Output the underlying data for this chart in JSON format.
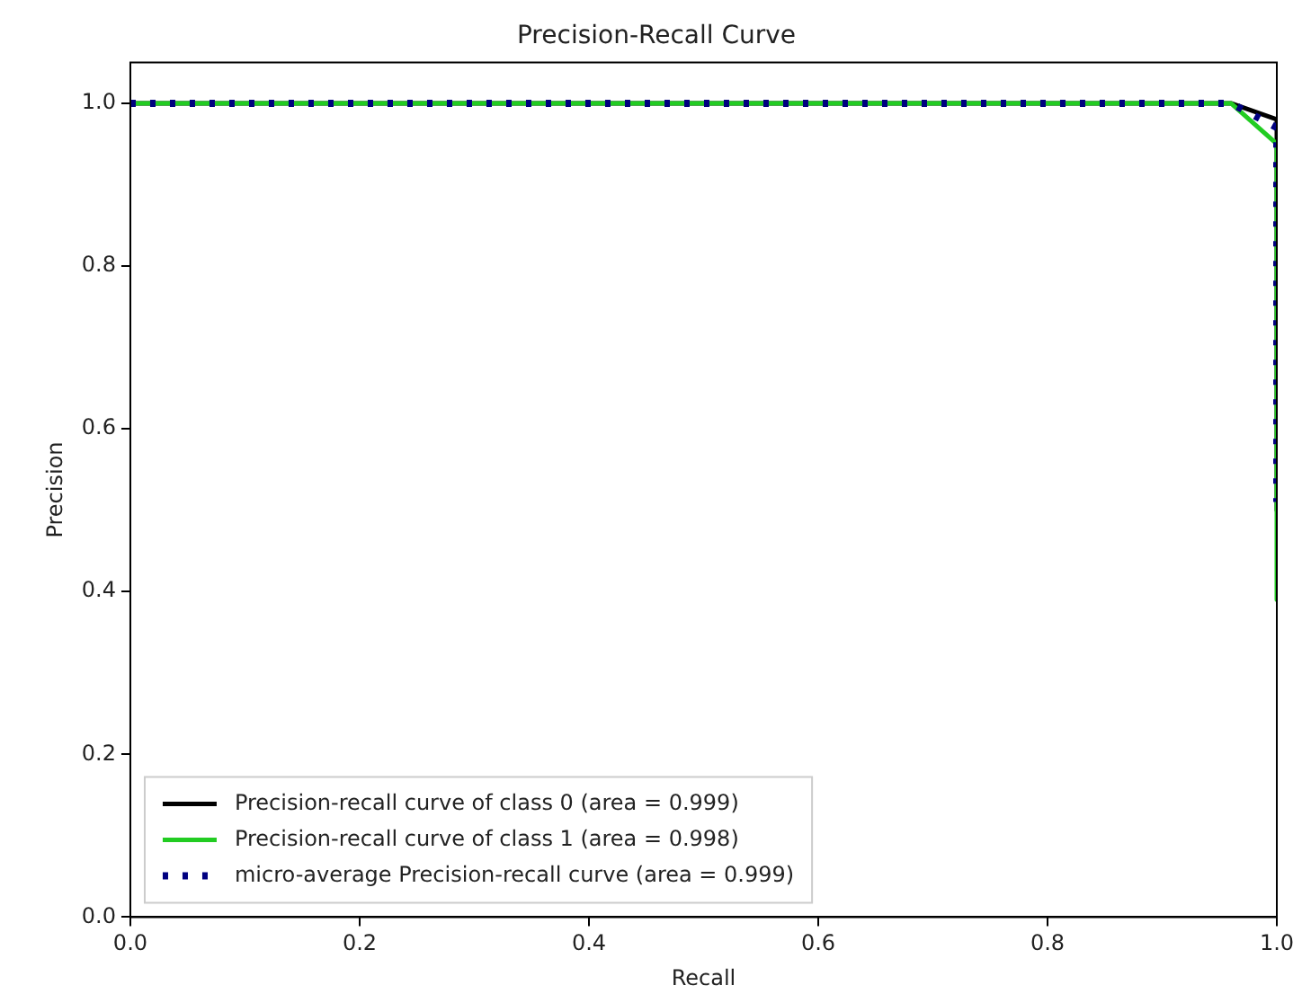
{
  "chart_data": {
    "type": "line",
    "title": "Precision-Recall Curve",
    "xlabel": "Recall",
    "ylabel": "Precision",
    "xlim": [
      0,
      1
    ],
    "ylim": [
      0,
      1.05
    ],
    "xticks": [
      {
        "value": 0,
        "label": "0.0"
      },
      {
        "value": 0.2,
        "label": "0.2"
      },
      {
        "value": 0.4,
        "label": "0.4"
      },
      {
        "value": 0.6,
        "label": "0.6"
      },
      {
        "value": 0.8,
        "label": "0.8"
      },
      {
        "value": 1,
        "label": "1.0"
      }
    ],
    "yticks": [
      {
        "value": 0,
        "label": "0.0"
      },
      {
        "value": 0.2,
        "label": "0.2"
      },
      {
        "value": 0.4,
        "label": "0.4"
      },
      {
        "value": 0.6,
        "label": "0.6"
      },
      {
        "value": 0.8,
        "label": "0.8"
      },
      {
        "value": 1,
        "label": "1.0"
      }
    ],
    "grid": false,
    "legend": "bottom left",
    "marker": "none",
    "series": [
      {
        "name": "Precision-recall curve of class 0 (area = 0.999)",
        "color": "#000000",
        "line_style": "solid",
        "x": [
          0,
          0.96,
          1,
          1
        ],
        "values": [
          1,
          1,
          0.98,
          0.5
        ]
      },
      {
        "name": "Precision-recall curve of class 1 (area = 0.998)",
        "color": "#22cc22",
        "line_style": "solid",
        "x": [
          0,
          0.96,
          1,
          1
        ],
        "values": [
          1,
          1,
          0.95,
          0.39
        ]
      },
      {
        "name": "micro-average Precision-recall curve (area = 0.999)",
        "color": "#000080",
        "line_style": "dotted",
        "x": [
          0,
          0.96,
          1,
          1
        ],
        "values": [
          1,
          1,
          0.97,
          0.51
        ]
      }
    ]
  }
}
